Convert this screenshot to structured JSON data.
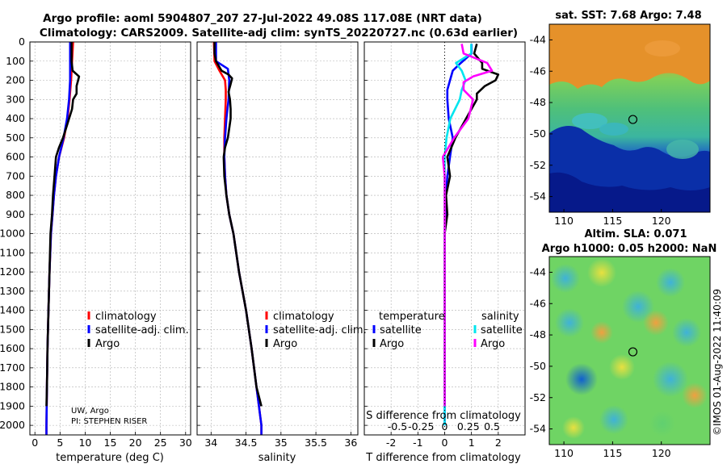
{
  "title_line1": "Argo profile: aoml 5904807_207 27-Jul-2022 49.08S 117.08E (NRT data)",
  "title_line2": "Climatology: CARS2009. Satellite-adj clim: synTS_20220727.nc (0.63d earlier)",
  "credit_line1": "UW, Argo",
  "credit_line2": "PI: STEPHEN RISER",
  "watermark": "©IMOS 01-Aug-2022 11:40:09",
  "colors": {
    "climatology": "#ff0000",
    "satellite": "#0000ff",
    "argo": "#000000",
    "sat_s": "#00e5ee",
    "argo_s": "#ff00ff"
  },
  "chart_data": [
    {
      "type": "line",
      "panel": "temperature",
      "xlabel": "temperature (deg C)",
      "ylabel": "",
      "xlim": [
        -1,
        31
      ],
      "ylim": [
        2050,
        0
      ],
      "xticks": [
        "0",
        "5",
        "10",
        "15",
        "20",
        "25",
        "30"
      ],
      "yticks": [
        "0",
        "100",
        "200",
        "300",
        "400",
        "500",
        "600",
        "700",
        "800",
        "900",
        "1000",
        "1100",
        "1200",
        "1300",
        "1400",
        "1500",
        "1600",
        "1700",
        "1800",
        "1900",
        "2000"
      ],
      "legend": [
        "climatology",
        "satellite-adj. clim.",
        "Argo"
      ],
      "series": [
        {
          "name": "climatology",
          "points": [
            [
              7.6,
              0
            ],
            [
              7.4,
              100
            ],
            [
              7.2,
              200
            ],
            [
              6.9,
              300
            ],
            [
              6.5,
              400
            ],
            [
              5.8,
              500
            ],
            [
              4.8,
              600
            ],
            [
              4.2,
              700
            ],
            [
              3.8,
              800
            ],
            [
              3.5,
              900
            ],
            [
              3.2,
              1000
            ],
            [
              2.9,
              1200
            ],
            [
              2.7,
              1400
            ],
            [
              2.5,
              1600
            ],
            [
              2.4,
              1800
            ],
            [
              2.3,
              2000
            ],
            [
              2.3,
              2050
            ]
          ]
        },
        {
          "name": "satellite-adj. clim.",
          "points": [
            [
              7.0,
              0
            ],
            [
              7.0,
              100
            ],
            [
              7.0,
              200
            ],
            [
              6.8,
              300
            ],
            [
              6.4,
              400
            ],
            [
              5.7,
              500
            ],
            [
              4.8,
              600
            ],
            [
              4.2,
              700
            ],
            [
              3.8,
              800
            ],
            [
              3.5,
              900
            ],
            [
              3.2,
              1000
            ],
            [
              2.9,
              1200
            ],
            [
              2.7,
              1400
            ],
            [
              2.5,
              1600
            ],
            [
              2.4,
              1800
            ],
            [
              2.3,
              2000
            ],
            [
              2.3,
              2050
            ]
          ]
        },
        {
          "name": "Argo",
          "points": [
            [
              7.3,
              0
            ],
            [
              7.3,
              50
            ],
            [
              7.3,
              100
            ],
            [
              7.5,
              150
            ],
            [
              8.8,
              180
            ],
            [
              8.6,
              200
            ],
            [
              8.3,
              230
            ],
            [
              8.3,
              270
            ],
            [
              7.6,
              300
            ],
            [
              7.4,
              350
            ],
            [
              6.8,
              400
            ],
            [
              6.2,
              450
            ],
            [
              5.6,
              500
            ],
            [
              4.8,
              550
            ],
            [
              4.2,
              600
            ],
            [
              3.9,
              700
            ],
            [
              3.6,
              800
            ],
            [
              3.4,
              900
            ],
            [
              3.1,
              1000
            ],
            [
              2.9,
              1200
            ],
            [
              2.7,
              1400
            ],
            [
              2.5,
              1600
            ],
            [
              2.4,
              1800
            ],
            [
              2.3,
              1900
            ]
          ]
        }
      ]
    },
    {
      "type": "line",
      "panel": "salinity",
      "xlabel": "salinity",
      "xlim": [
        33.8,
        36.1
      ],
      "ylim": [
        2050,
        0
      ],
      "xticks": [
        "34",
        "34.5",
        "35",
        "35.5",
        "36"
      ],
      "legend": [
        "climatology",
        "satellite-adj. clim.",
        "Argo"
      ],
      "series": [
        {
          "name": "climatology",
          "points": [
            [
              34.04,
              0
            ],
            [
              34.05,
              100
            ],
            [
              34.12,
              150
            ],
            [
              34.2,
              200
            ],
            [
              34.21,
              250
            ],
            [
              34.21,
              300
            ],
            [
              34.2,
              400
            ],
            [
              34.19,
              500
            ],
            [
              34.19,
              600
            ],
            [
              34.2,
              700
            ],
            [
              34.22,
              800
            ],
            [
              34.26,
              900
            ],
            [
              34.32,
              1000
            ],
            [
              34.4,
              1200
            ],
            [
              34.5,
              1400
            ],
            [
              34.58,
              1600
            ],
            [
              34.65,
              1800
            ],
            [
              34.72,
              2000
            ],
            [
              34.72,
              2050
            ]
          ]
        },
        {
          "name": "satellite-adj. clim.",
          "points": [
            [
              34.07,
              0
            ],
            [
              34.07,
              100
            ],
            [
              34.24,
              140
            ],
            [
              34.26,
              200
            ],
            [
              34.25,
              300
            ],
            [
              34.22,
              400
            ],
            [
              34.2,
              500
            ],
            [
              34.19,
              600
            ],
            [
              34.2,
              700
            ],
            [
              34.22,
              800
            ],
            [
              34.26,
              900
            ],
            [
              34.32,
              1000
            ],
            [
              34.4,
              1200
            ],
            [
              34.5,
              1400
            ],
            [
              34.58,
              1600
            ],
            [
              34.65,
              1800
            ],
            [
              34.72,
              2000
            ],
            [
              34.72,
              2050
            ]
          ]
        },
        {
          "name": "Argo",
          "points": [
            [
              34.05,
              0
            ],
            [
              34.05,
              60
            ],
            [
              34.07,
              100
            ],
            [
              34.15,
              150
            ],
            [
              34.25,
              170
            ],
            [
              34.3,
              190
            ],
            [
              34.28,
              220
            ],
            [
              34.25,
              260
            ],
            [
              34.27,
              300
            ],
            [
              34.28,
              350
            ],
            [
              34.28,
              400
            ],
            [
              34.26,
              450
            ],
            [
              34.24,
              500
            ],
            [
              34.2,
              550
            ],
            [
              34.18,
              600
            ],
            [
              34.19,
              700
            ],
            [
              34.22,
              800
            ],
            [
              34.26,
              900
            ],
            [
              34.32,
              1000
            ],
            [
              34.4,
              1200
            ],
            [
              34.5,
              1400
            ],
            [
              34.58,
              1600
            ],
            [
              34.65,
              1800
            ],
            [
              34.72,
              1900
            ]
          ]
        }
      ]
    },
    {
      "type": "line",
      "panel": "differences",
      "xlabel": "T difference from climatology",
      "xlabel_top": "S difference from climatology",
      "xlim": [
        -3,
        3
      ],
      "ylim": [
        2050,
        0
      ],
      "xticks": [
        "-2",
        "-1",
        "0",
        "1",
        "2"
      ],
      "xticks_s": [
        "-0.5",
        "-0.25",
        "0",
        "0.25",
        "0.5"
      ],
      "legend_t": {
        "title": "temperature",
        "items": [
          "satellite",
          "Argo"
        ]
      },
      "legend_s": {
        "title": "salinity",
        "items": [
          "satellite",
          "Argo"
        ]
      },
      "series": [
        {
          "name": "temperature satellite",
          "points": [
            [
              1.0,
              10
            ],
            [
              1.0,
              60
            ],
            [
              0.6,
              110
            ],
            [
              0.3,
              150
            ],
            [
              0.2,
              200
            ],
            [
              0.1,
              250
            ],
            [
              0.1,
              300
            ],
            [
              0.15,
              400
            ],
            [
              0.3,
              500
            ],
            [
              0.2,
              600
            ],
            [
              0.1,
              700
            ],
            [
              0.05,
              800
            ],
            [
              0.02,
              900
            ],
            [
              0,
              1000
            ],
            [
              0,
              2000
            ]
          ]
        },
        {
          "name": "temperature Argo",
          "points": [
            [
              1.2,
              10
            ],
            [
              1.1,
              60
            ],
            [
              1.4,
              110
            ],
            [
              1.4,
              140
            ],
            [
              2.0,
              170
            ],
            [
              1.9,
              200
            ],
            [
              1.5,
              230
            ],
            [
              1.2,
              270
            ],
            [
              1.2,
              300
            ],
            [
              0.8,
              400
            ],
            [
              0.4,
              500
            ],
            [
              0.1,
              600
            ],
            [
              0.2,
              700
            ],
            [
              0.05,
              800
            ],
            [
              0.1,
              900
            ],
            [
              0,
              1000
            ],
            [
              0,
              1900
            ]
          ]
        },
        {
          "name": "salinity satellite",
          "points": [
            [
              0.28,
              10
            ],
            [
              0.28,
              60
            ],
            [
              0.12,
              110
            ],
            [
              0.18,
              150
            ],
            [
              0.22,
              200
            ],
            [
              0.18,
              250
            ],
            [
              0.16,
              300
            ],
            [
              0.06,
              400
            ],
            [
              0.02,
              500
            ],
            [
              0,
              600
            ],
            [
              0,
              700
            ],
            [
              0,
              800
            ],
            [
              0,
              1000
            ],
            [
              0,
              2000
            ]
          ]
        },
        {
          "name": "salinity Argo",
          "points": [
            [
              0.18,
              10
            ],
            [
              0.2,
              60
            ],
            [
              0.45,
              110
            ],
            [
              0.5,
              150
            ],
            [
              0.3,
              180
            ],
            [
              0.2,
              210
            ],
            [
              0.2,
              250
            ],
            [
              0.3,
              300
            ],
            [
              0.25,
              400
            ],
            [
              0.1,
              500
            ],
            [
              -0.02,
              600
            ],
            [
              0,
              700
            ],
            [
              0,
              900
            ],
            [
              0,
              1000
            ],
            [
              0,
              1900
            ]
          ]
        }
      ]
    },
    {
      "type": "heatmap",
      "panel": "sst-map",
      "title": "sat. SST: 7.68 Argo: 7.48",
      "xlim": [
        108.5,
        125
      ],
      "ylim": [
        -55,
        -43
      ],
      "xticks": [
        "110",
        "115",
        "120"
      ],
      "yticks": [
        "-44",
        "-46",
        "-48",
        "-50",
        "-52",
        "-54"
      ],
      "marker": [
        117.08,
        -49.08
      ]
    },
    {
      "type": "heatmap",
      "panel": "sla-map",
      "title_line1": "Altim. SLA: 0.071",
      "title_line2": "Argo h1000: 0.05 h2000: NaN",
      "xlim": [
        108.5,
        125
      ],
      "ylim": [
        -55,
        -43
      ],
      "xticks": [
        "110",
        "115",
        "120"
      ],
      "yticks": [
        "-44",
        "-46",
        "-48",
        "-50",
        "-52",
        "-54"
      ],
      "marker": [
        117.08,
        -49.08
      ]
    }
  ]
}
